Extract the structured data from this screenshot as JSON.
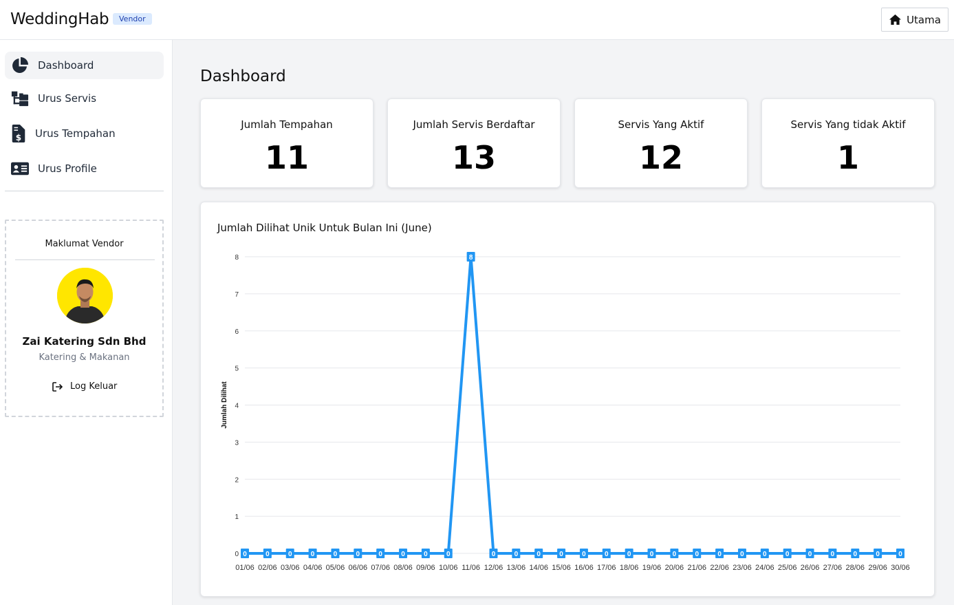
{
  "header": {
    "brand": "WeddingHab",
    "badge": "Vendor",
    "home_button": "Utama",
    "home_icon": "home-icon"
  },
  "sidebar": {
    "items": [
      {
        "label": "Dashboard",
        "icon": "pie-chart-icon",
        "active": true
      },
      {
        "label": "Urus Servis",
        "icon": "folder-tree-icon",
        "active": false
      },
      {
        "label": "Urus Tempahan",
        "icon": "invoice-dollar-icon",
        "active": false
      },
      {
        "label": "Urus Profile",
        "icon": "id-card-icon",
        "active": false
      }
    ],
    "vendor": {
      "title": "Maklumat Vendor",
      "name": "Zai Katering Sdn Bhd",
      "category": "Katering & Makanan",
      "logout_label": "Log Keluar"
    }
  },
  "main": {
    "title": "Dashboard",
    "stats": [
      {
        "label": "Jumlah Tempahan",
        "value": "11"
      },
      {
        "label": "Jumlah Servis Berdaftar",
        "value": "13"
      },
      {
        "label": "Servis Yang Aktif",
        "value": "12"
      },
      {
        "label": "Servis Yang tidak Aktif",
        "value": "1"
      }
    ],
    "chart_title": "Jumlah Dilihat Unik Untuk Bulan Ini (June)"
  },
  "colors": {
    "line": "#2196f3",
    "accent_badge_bg": "#dbeafe",
    "avatar_bg": "#ffe600"
  },
  "chart_data": {
    "type": "line",
    "title": "Jumlah Dilihat Unik Untuk Bulan Ini (June)",
    "xlabel": "",
    "ylabel": "Jumlah Dilihat",
    "ylim": [
      0,
      8
    ],
    "yticks": [
      0,
      1,
      2,
      3,
      4,
      5,
      6,
      7,
      8
    ],
    "grid": true,
    "categories": [
      "01/06",
      "02/06",
      "03/06",
      "04/06",
      "05/06",
      "06/06",
      "07/06",
      "08/06",
      "09/06",
      "10/06",
      "11/06",
      "12/06",
      "13/06",
      "14/06",
      "15/06",
      "16/06",
      "17/06",
      "18/06",
      "19/06",
      "20/06",
      "21/06",
      "22/06",
      "23/06",
      "24/06",
      "25/06",
      "26/06",
      "27/06",
      "28/06",
      "29/06",
      "30/06"
    ],
    "values": [
      0,
      0,
      0,
      0,
      0,
      0,
      0,
      0,
      0,
      0,
      8,
      0,
      0,
      0,
      0,
      0,
      0,
      0,
      0,
      0,
      0,
      0,
      0,
      0,
      0,
      0,
      0,
      0,
      0,
      0
    ]
  }
}
